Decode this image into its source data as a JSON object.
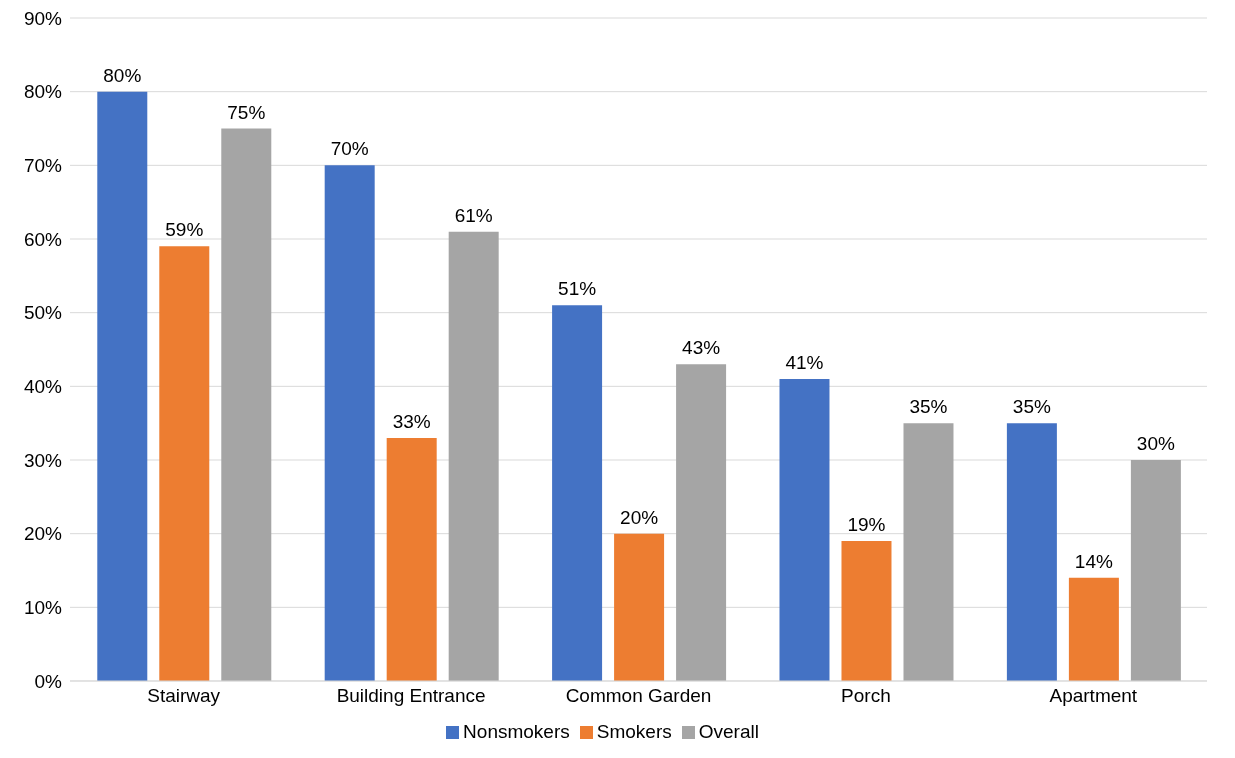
{
  "chart_data": {
    "type": "bar",
    "categories": [
      "Stairway",
      "Building Entrance",
      "Common Garden",
      "Porch",
      "Apartment"
    ],
    "series": [
      {
        "name": "Nonsmokers",
        "color": "#4472c4",
        "values": [
          80,
          70,
          51,
          41,
          35
        ],
        "value_labels": [
          "80%",
          "70%",
          "51%",
          "41%",
          "35%"
        ]
      },
      {
        "name": "Smokers",
        "color": "#ed7d31",
        "values": [
          59,
          33,
          20,
          19,
          14
        ],
        "value_labels": [
          "59%",
          "33%",
          "20%",
          "19%",
          "14%"
        ]
      },
      {
        "name": "Overall",
        "color": "#a5a5a5",
        "values": [
          75,
          61,
          43,
          35,
          30
        ],
        "value_labels": [
          "75%",
          "61%",
          "43%",
          "35%",
          "30%"
        ]
      }
    ],
    "ylim": [
      0,
      90
    ],
    "yticks": [
      {
        "value": 0,
        "label": "0%"
      },
      {
        "value": 10,
        "label": "10%"
      },
      {
        "value": 20,
        "label": "20%"
      },
      {
        "value": 30,
        "label": "30%"
      },
      {
        "value": 40,
        "label": "40%"
      },
      {
        "value": 50,
        "label": "50%"
      },
      {
        "value": 60,
        "label": "60%"
      },
      {
        "value": 70,
        "label": "70%"
      },
      {
        "value": 80,
        "label": "80%"
      },
      {
        "value": 90,
        "label": "90%"
      }
    ],
    "grid": "y",
    "legend": "bottom"
  }
}
